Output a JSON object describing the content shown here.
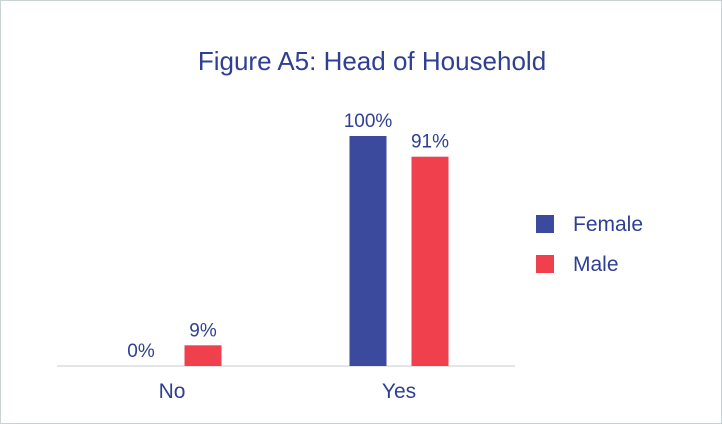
{
  "chart_data": {
    "type": "bar",
    "title": "Figure A5: Head of Household",
    "categories": [
      "No",
      "Yes"
    ],
    "series": [
      {
        "name": "Female",
        "values": [
          0,
          100
        ],
        "labels": [
          "0%",
          "100%"
        ],
        "color": "#3b4a9c"
      },
      {
        "name": "Male",
        "values": [
          9,
          91
        ],
        "labels": [
          "9%",
          "91%"
        ],
        "color": "#f0404e"
      }
    ],
    "ylim": [
      0,
      100
    ],
    "grid": false,
    "legend": "right",
    "xlabel": "",
    "ylabel": ""
  }
}
